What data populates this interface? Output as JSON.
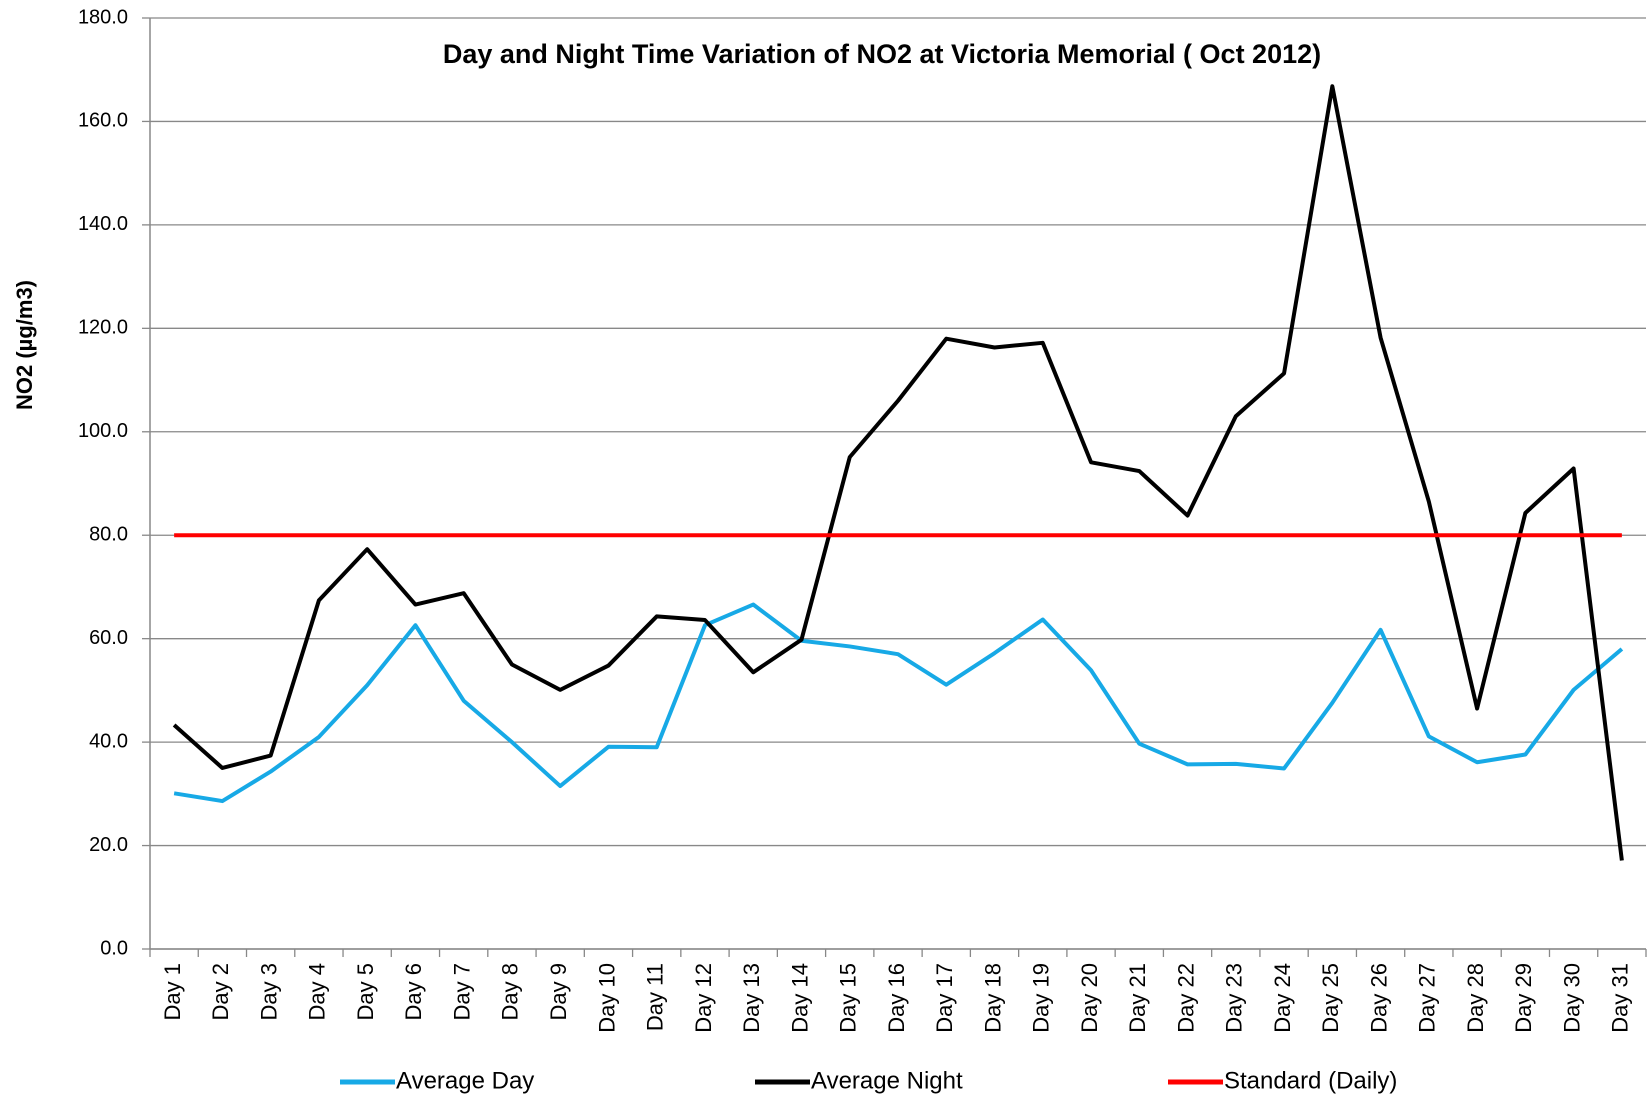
{
  "chart_data": {
    "type": "line",
    "title": "Day and Night Time Variation of NO2 at Victoria Memorial ( Oct 2012)",
    "y_label": "NO2 (µg/m3)",
    "categories": [
      "Day 1",
      "Day 2",
      "Day 3",
      "Day 4",
      "Day 5",
      "Day 6",
      "Day 7",
      "Day 8",
      "Day 9",
      "Day 10",
      "Day 11",
      "Day 12",
      "Day 13",
      "Day 14",
      "Day 15",
      "Day 16",
      "Day 17",
      "Day 18",
      "Day 19",
      "Day 20",
      "Day 21",
      "Day 22",
      "Day 23",
      "Day 24",
      "Day 25",
      "Day 26",
      "Day 27",
      "Day 28",
      "Day 29",
      "Day 30",
      "Day 31"
    ],
    "series": [
      {
        "name": "Average Day",
        "color": "#17a9e6",
        "values": [
          30.1,
          28.6,
          34.3,
          41.0,
          51.0,
          62.6,
          48.0,
          40.0,
          31.5,
          39.1,
          39.0,
          62.6,
          66.6,
          59.6,
          58.5,
          57.0,
          51.1,
          57.2,
          63.7,
          53.9,
          39.7,
          35.7,
          35.8,
          34.9,
          47.6,
          61.7,
          41.1,
          36.1,
          37.6,
          50.1,
          58.0
        ]
      },
      {
        "name": "Average Night",
        "color": "#000000",
        "values": [
          43.3,
          35.0,
          37.4,
          67.4,
          77.3,
          66.6,
          68.8,
          55.0,
          50.1,
          54.8,
          64.3,
          63.6,
          53.5,
          59.8,
          95.1,
          106.0,
          118.0,
          116.3,
          117.2,
          94.1,
          92.4,
          83.8,
          103.0,
          111.3,
          166.8,
          118.2,
          86.5,
          46.5,
          84.3,
          92.9,
          17.1
        ]
      },
      {
        "name": "Standard (Daily)",
        "color": "#ff0000",
        "values": [
          80,
          80,
          80,
          80,
          80,
          80,
          80,
          80,
          80,
          80,
          80,
          80,
          80,
          80,
          80,
          80,
          80,
          80,
          80,
          80,
          80,
          80,
          80,
          80,
          80,
          80,
          80,
          80,
          80,
          80,
          80
        ]
      }
    ],
    "ylim": [
      0,
      180
    ],
    "yticks": [
      {
        "value": 0,
        "label": "0.0"
      },
      {
        "value": 20,
        "label": "20.0"
      },
      {
        "value": 40,
        "label": "40.0"
      },
      {
        "value": 60,
        "label": "60.0"
      },
      {
        "value": 80,
        "label": "80.0"
      },
      {
        "value": 100,
        "label": "100.0"
      },
      {
        "value": 120,
        "label": "120.0"
      },
      {
        "value": 140,
        "label": "140.0"
      },
      {
        "value": 160,
        "label": "160.0"
      },
      {
        "value": 180,
        "label": "180.0"
      }
    ],
    "grid": true,
    "legend": "bottom"
  }
}
